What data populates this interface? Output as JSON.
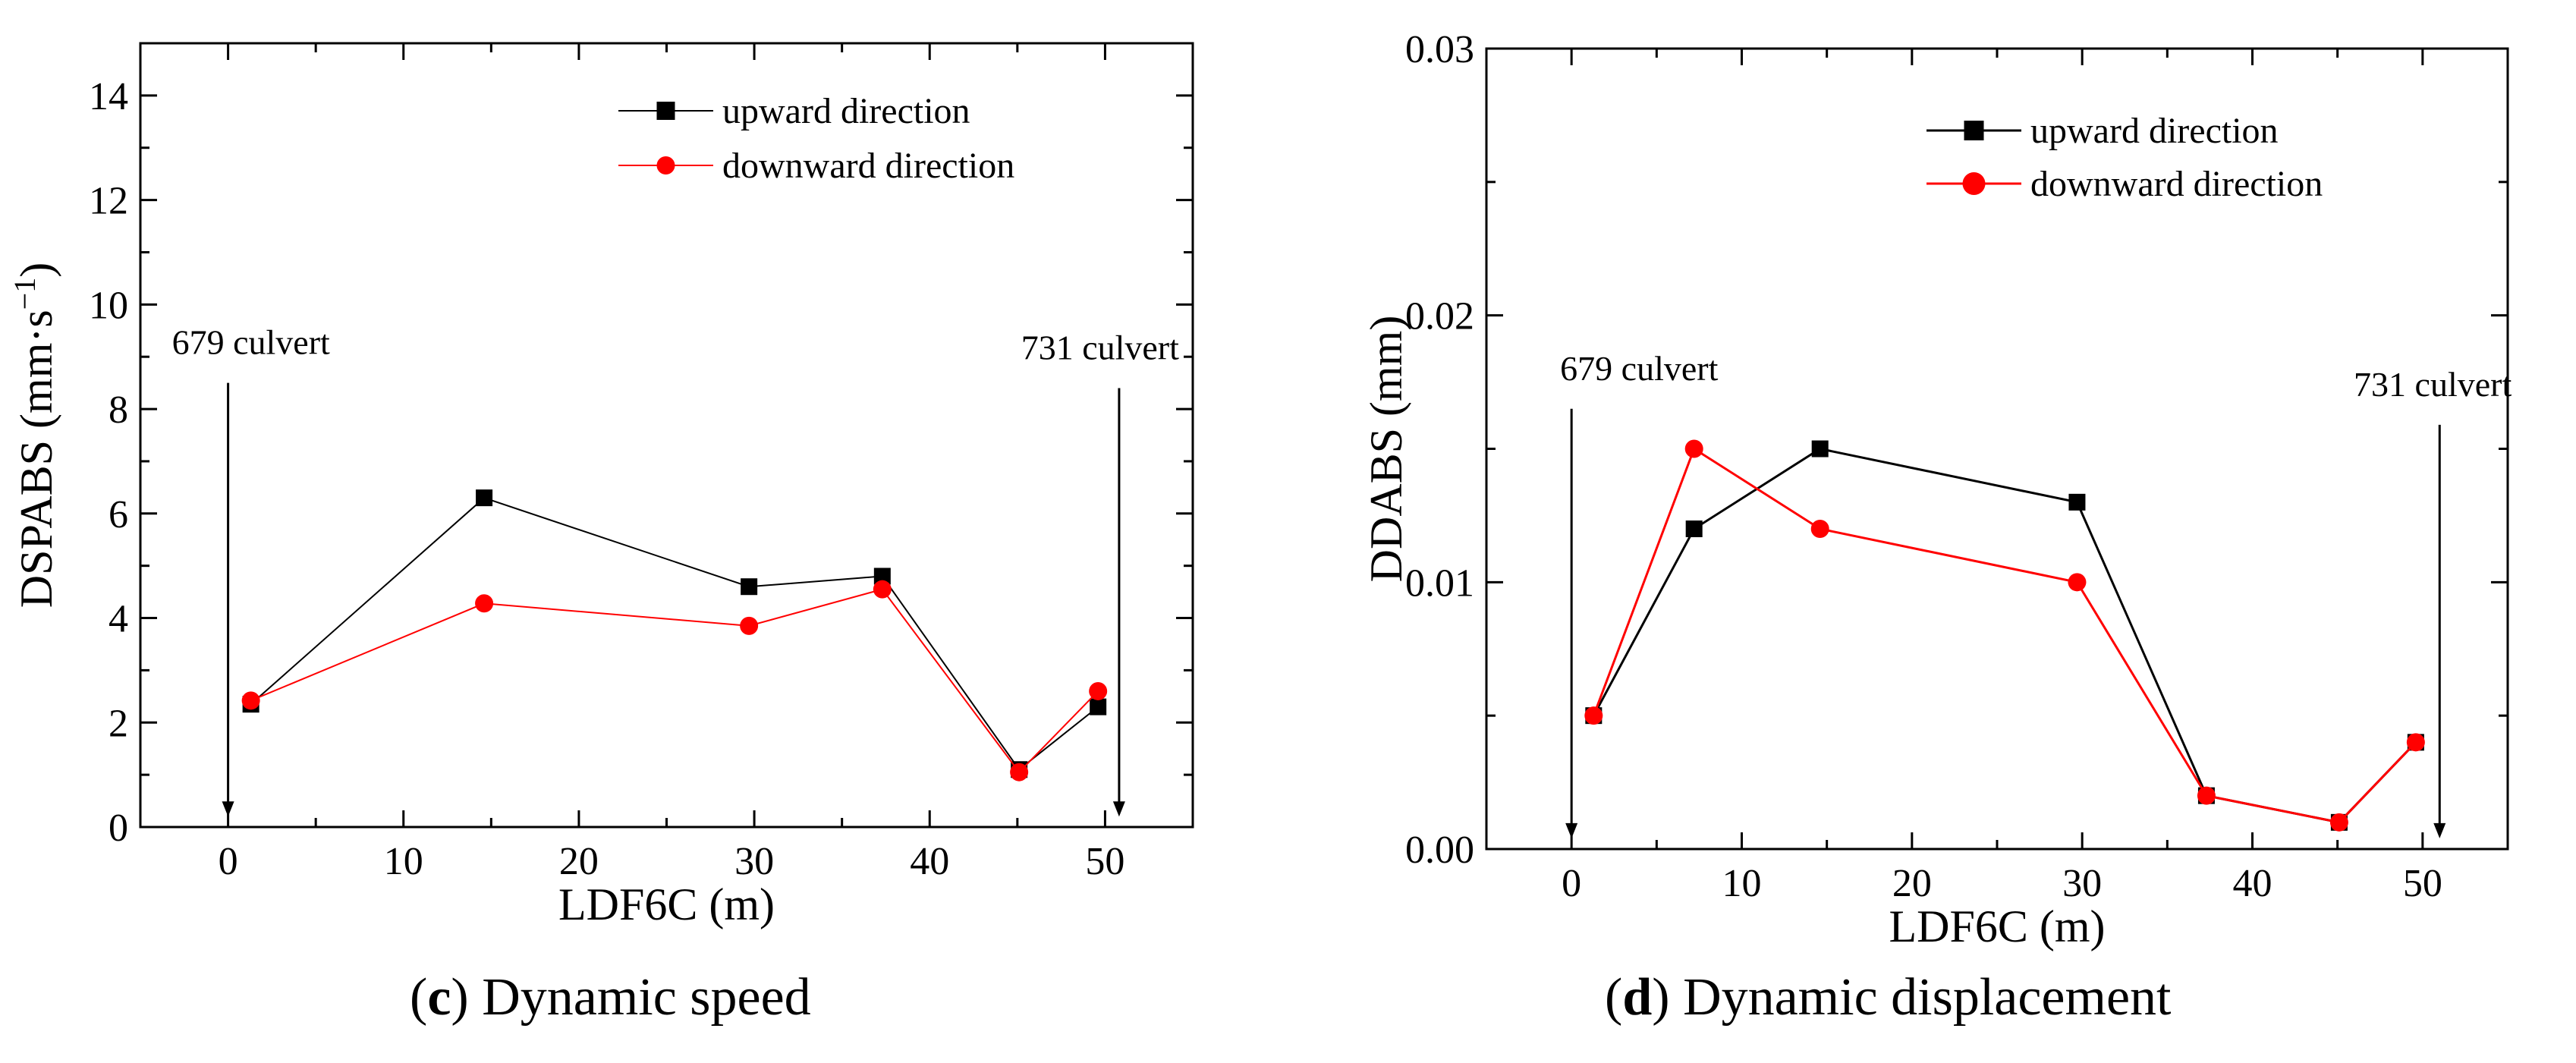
{
  "chart_data": [
    {
      "type": "line",
      "panel_letter": "c",
      "caption": "Dynamic speed",
      "xlabel": "LDF6C (m)",
      "ylabel_main": "DSPABS (mm·s",
      "ylabel_sup": "−1",
      "ylabel_close": ")",
      "xlim": [
        -5,
        55
      ],
      "ylim": [
        0,
        15
      ],
      "xticks": [
        0,
        10,
        20,
        30,
        40,
        50
      ],
      "yticks": [
        0,
        2,
        4,
        6,
        8,
        10,
        12,
        14
      ],
      "ytick_labels": [
        "0",
        "2",
        "4",
        "6",
        "8",
        "10",
        "12",
        "14"
      ],
      "series": [
        {
          "name": "upward direction",
          "color": "#000000",
          "marker": "square",
          "x": [
            1.3,
            14.6,
            29.7,
            37.3,
            45.1,
            49.6
          ],
          "y": [
            2.35,
            6.3,
            4.6,
            4.8,
            1.1,
            2.3
          ]
        },
        {
          "name": "downward direction",
          "color": "#ff0000",
          "marker": "circle",
          "x": [
            1.3,
            14.6,
            29.7,
            37.3,
            45.1,
            49.6
          ],
          "y": [
            2.42,
            4.28,
            3.85,
            4.55,
            1.05,
            2.6
          ]
        }
      ],
      "annotations": [
        {
          "label": "679 culvert",
          "x": 0,
          "y_top": 8.5,
          "y_bottom": 0.2
        },
        {
          "label": "731 culvert",
          "x": 50.8,
          "y_top": 8.4,
          "y_bottom": 0.2
        }
      ],
      "legend": "top-right"
    },
    {
      "type": "line",
      "panel_letter": "d",
      "caption": "Dynamic displacement",
      "xlabel": "LDF6C (m)",
      "ylabel_main": "DDABS (mm)",
      "xlim": [
        -5,
        55
      ],
      "ylim": [
        0,
        0.03
      ],
      "xticks": [
        0,
        10,
        20,
        30,
        40,
        50
      ],
      "yticks": [
        0,
        0.01,
        0.02,
        0.03
      ],
      "ytick_labels": [
        "0.00",
        "0.01",
        "0.02",
        "0.03"
      ],
      "series": [
        {
          "name": "upward direction",
          "color": "#000000",
          "marker": "square",
          "x": [
            1.3,
            7.2,
            14.6,
            29.7,
            37.3,
            45.1,
            49.6
          ],
          "y": [
            0.005,
            0.012,
            0.015,
            0.013,
            0.002,
            0.001,
            0.004
          ]
        },
        {
          "name": "downward direction",
          "color": "#ff0000",
          "marker": "circle",
          "x": [
            1.3,
            7.2,
            14.6,
            29.7,
            37.3,
            45.1,
            49.6
          ],
          "y": [
            0.005,
            0.015,
            0.012,
            0.01,
            0.002,
            0.001,
            0.004
          ]
        }
      ],
      "annotations": [
        {
          "label": "679 culvert",
          "x": 0,
          "y_top": 0.0165,
          "y_bottom": 0.0004
        },
        {
          "label": "731 culvert",
          "x": 51,
          "y_top": 0.0159,
          "y_bottom": 0.0004
        }
      ],
      "legend": "top-right"
    }
  ]
}
